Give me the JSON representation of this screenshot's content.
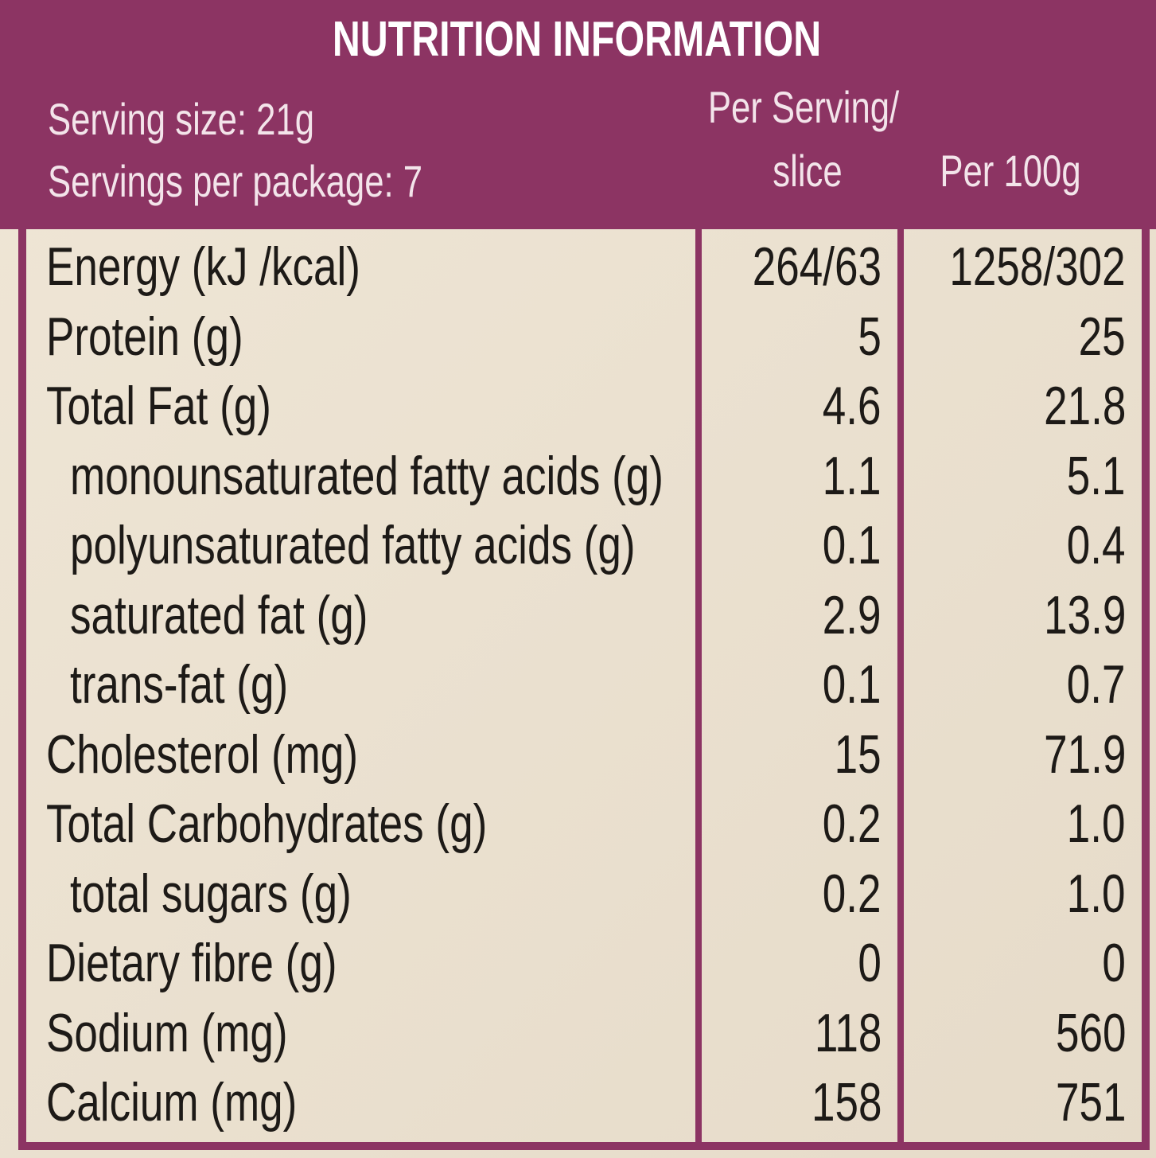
{
  "header": {
    "title": "NUTRITION INFORMATION",
    "serving_size": "Serving size: 21g",
    "servings_per_package": "Servings per package: 7",
    "col_per_serving": [
      "Per Serving/",
      "slice"
    ],
    "col_per_100g": "Per 100g"
  },
  "table": {
    "rows": [
      {
        "name": "Energy (kJ /kcal)",
        "per_serving": "264/63",
        "per_100g": "1258/302"
      },
      {
        "name": "Protein (g)",
        "per_serving": "5",
        "per_100g": "25"
      },
      {
        "name": "Total Fat (g)",
        "per_serving": "4.6",
        "per_100g": "21.8",
        "sub": [
          {
            "name": "monounsaturated fatty acids (g)",
            "per_serving": "1.1",
            "per_100g": "5.1"
          },
          {
            "name": "polyunsaturated fatty acids (g)",
            "per_serving": "0.1",
            "per_100g": "0.4"
          },
          {
            "name": "saturated fat (g)",
            "per_serving": "2.9",
            "per_100g": "13.9"
          },
          {
            "name": "trans-fat (g)",
            "per_serving": "0.1",
            "per_100g": "0.7"
          }
        ]
      },
      {
        "name": "Cholesterol (mg)",
        "per_serving": "15",
        "per_100g": "71.9"
      },
      {
        "name": "Total Carbohydrates (g)",
        "per_serving": "0.2",
        "per_100g": "1.0",
        "sub": [
          {
            "name": "total sugars (g)",
            "per_serving": "0.2",
            "per_100g": "1.0"
          }
        ]
      },
      {
        "name": "Dietary fibre (g)",
        "per_serving": "0",
        "per_100g": "0"
      },
      {
        "name": "Sodium (mg)",
        "per_serving": "118",
        "per_100g": "560"
      },
      {
        "name": "Calcium (mg)",
        "per_serving": "158",
        "per_100g": "751"
      }
    ]
  }
}
